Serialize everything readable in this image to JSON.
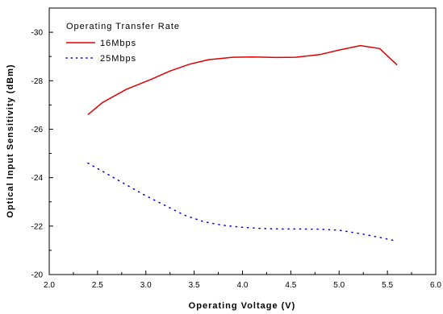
{
  "chart_data": {
    "type": "line",
    "xlabel": "Operating Voltage (V)",
    "ylabel": "Optical Input Sensitivity (dBm)",
    "xlim": [
      2.0,
      6.0
    ],
    "ylim": [
      -20,
      -31
    ],
    "y_reversed": true,
    "xticks": [
      "2.0",
      "2.5",
      "3.0",
      "3.5",
      "4.0",
      "4.5",
      "5.0",
      "5.5",
      "6.0"
    ],
    "yticks": [
      "-20",
      "-22",
      "-24",
      "-26",
      "-28",
      "-30"
    ],
    "x_tick_values": [
      2.0,
      2.5,
      3.0,
      3.5,
      4.0,
      4.5,
      5.0,
      5.5,
      6.0
    ],
    "y_tick_values": [
      -20,
      -22,
      -24,
      -26,
      -28,
      -30
    ],
    "grid": false,
    "legend_title": "Operating Transfer Rate",
    "legend_position": "top-left",
    "series": [
      {
        "name": "16Mbps",
        "color": "#e00000",
        "style": "solid",
        "x": [
          2.4,
          2.55,
          2.8,
          3.05,
          3.25,
          3.45,
          3.65,
          3.9,
          4.1,
          4.35,
          4.55,
          4.8,
          5.0,
          5.22,
          5.42,
          5.6
        ],
        "y": [
          -26.6,
          -27.1,
          -27.65,
          -28.05,
          -28.4,
          -28.68,
          -28.87,
          -28.97,
          -28.98,
          -28.96,
          -28.97,
          -29.08,
          -29.27,
          -29.45,
          -29.33,
          -28.65
        ]
      },
      {
        "name": "25Mbps",
        "color": "#0000cc",
        "style": "dotted",
        "x": [
          2.4,
          2.6,
          2.8,
          3.0,
          3.2,
          3.4,
          3.6,
          3.8,
          4.0,
          4.2,
          4.4,
          4.6,
          4.8,
          5.0,
          5.2,
          5.4,
          5.6
        ],
        "y": [
          -24.6,
          -24.15,
          -23.7,
          -23.25,
          -22.85,
          -22.45,
          -22.18,
          -22.03,
          -21.95,
          -21.9,
          -21.88,
          -21.88,
          -21.87,
          -21.83,
          -21.7,
          -21.55,
          -21.38
        ]
      }
    ]
  }
}
